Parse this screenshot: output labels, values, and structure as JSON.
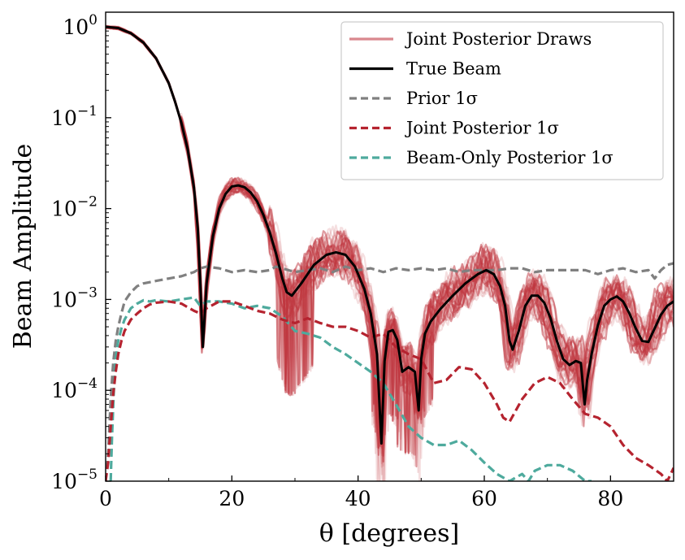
{
  "chart_data": {
    "type": "line",
    "title": "",
    "xlabel": "θ [degrees]",
    "ylabel": "Beam Amplitude",
    "xlim": [
      0,
      90
    ],
    "ylim": [
      1e-05,
      1.45
    ],
    "yscale": "log",
    "xticks": [
      0,
      20,
      40,
      60,
      80
    ],
    "xtick_labels": [
      "0",
      "20",
      "40",
      "60",
      "80"
    ],
    "yticks": [
      {
        "value": 1,
        "base": "10",
        "exp": "0"
      },
      {
        "value": 0.1,
        "base": "10",
        "exp": "−1"
      },
      {
        "value": 0.01,
        "base": "10",
        "exp": "−2"
      },
      {
        "value": 0.001,
        "base": "10",
        "exp": "−3"
      },
      {
        "value": 0.0001,
        "base": "10",
        "exp": "−4"
      },
      {
        "value": 1e-05,
        "base": "10",
        "exp": "−5"
      }
    ],
    "legend": {
      "position": "upper right",
      "entries": [
        {
          "label": "Joint Posterior Draws",
          "style": "solid",
          "color": "#d9888e"
        },
        {
          "label": "True Beam",
          "style": "solid",
          "color": "#000000"
        },
        {
          "label": "Prior 1σ",
          "style": "dashed",
          "color": "#808080"
        },
        {
          "label": "Joint Posterior 1σ",
          "style": "dashed",
          "color": "#b5232f"
        },
        {
          "label": "Beam-Only Posterior 1σ",
          "style": "dashed",
          "color": "#4eaa9d"
        }
      ]
    },
    "posterior_draws": {
      "name": "Joint Posterior Draws",
      "color": "#c0353f",
      "count": 40,
      "description_values": "spread of draws around the true beam"
    },
    "series": [
      {
        "name": "True Beam",
        "color": "#000000",
        "style": "solid",
        "x": [
          0,
          2,
          4,
          6,
          8,
          10,
          11,
          12,
          13,
          14,
          14.6,
          15.0,
          15.4,
          16,
          17,
          18,
          19,
          20,
          21,
          22,
          23,
          24,
          25,
          26,
          27,
          28,
          28.7,
          29.5,
          31,
          33,
          35,
          36.5,
          38,
          39.5,
          41,
          42,
          43,
          43.7,
          44.2,
          44.8,
          45.5,
          46.2,
          47,
          48,
          49,
          49.6,
          50,
          50.6,
          51.5,
          53,
          55,
          57,
          59,
          60.3,
          61.5,
          62.5,
          63.3,
          64,
          64.5,
          65.5,
          66.5,
          67.5,
          68.5,
          69.5,
          70.5,
          71.5,
          72.5,
          73.5,
          74.5,
          75.3,
          75.9,
          76.3,
          77,
          78,
          79,
          80,
          81,
          82,
          83,
          84,
          85,
          86,
          87,
          88,
          89,
          90
        ],
        "y": [
          1.0,
          0.97,
          0.85,
          0.67,
          0.45,
          0.24,
          0.15,
          0.088,
          0.045,
          0.017,
          0.006,
          0.0015,
          0.0003,
          0.0015,
          0.005,
          0.01,
          0.0145,
          0.0175,
          0.018,
          0.0172,
          0.015,
          0.012,
          0.0085,
          0.0055,
          0.0032,
          0.0017,
          0.0012,
          0.0011,
          0.0015,
          0.0024,
          0.0031,
          0.0033,
          0.0031,
          0.0023,
          0.0013,
          0.0007,
          0.00025,
          2.6e-05,
          0.00021,
          0.00044,
          0.00046,
          0.00036,
          0.00016,
          0.00018,
          0.00016,
          6e-05,
          0.00022,
          0.00042,
          0.00057,
          0.00078,
          0.0011,
          0.0015,
          0.0019,
          0.0021,
          0.0019,
          0.0014,
          0.00085,
          0.00035,
          0.00028,
          0.00046,
          0.00085,
          0.0011,
          0.0011,
          0.00092,
          0.00062,
          0.00035,
          0.00022,
          0.00019,
          0.00021,
          0.0002,
          7e-05,
          0.00013,
          0.00025,
          0.00052,
          0.00085,
          0.001,
          0.00108,
          0.00095,
          0.0007,
          0.00048,
          0.00035,
          0.00034,
          0.00048,
          0.00068,
          0.00085,
          0.00095
        ]
      },
      {
        "name": "Prior 1σ",
        "color": "#808080",
        "style": "dashed",
        "x": [
          0,
          0.4,
          0.8,
          1.2,
          1.6,
          2,
          2.5,
          3,
          4,
          5,
          6,
          7,
          8,
          10,
          12,
          14,
          15,
          16,
          18,
          20,
          22,
          24,
          26,
          27,
          28,
          30,
          32,
          34,
          36,
          38,
          40,
          42,
          44,
          46,
          48,
          50,
          52,
          54,
          56,
          58,
          60,
          62,
          64,
          66,
          68,
          70,
          72,
          74,
          76,
          78,
          80,
          82,
          84,
          86,
          87,
          88,
          89,
          90
        ],
        "y": [
          1e-05,
          2e-05,
          8e-05,
          0.0002,
          0.00035,
          0.0005,
          0.0007,
          0.00095,
          0.0012,
          0.0014,
          0.0015,
          0.00155,
          0.0016,
          0.0017,
          0.0018,
          0.002,
          0.0022,
          0.0023,
          0.0022,
          0.002,
          0.0021,
          0.002,
          0.0021,
          0.0023,
          0.0022,
          0.002,
          0.0021,
          0.0022,
          0.002,
          0.0023,
          0.0021,
          0.0022,
          0.002,
          0.0022,
          0.0021,
          0.0022,
          0.0021,
          0.0022,
          0.002,
          0.0021,
          0.0021,
          0.0021,
          0.0022,
          0.0022,
          0.002,
          0.0021,
          0.0021,
          0.0021,
          0.0021,
          0.0019,
          0.0021,
          0.0022,
          0.002,
          0.0021,
          0.0017,
          0.0021,
          0.0024,
          0.0025
        ]
      },
      {
        "name": "Joint Posterior 1σ",
        "color": "#b5232f",
        "style": "dashed",
        "x": [
          0,
          0.4,
          0.8,
          1.2,
          1.6,
          2,
          2.5,
          3,
          4,
          5,
          6,
          7,
          8,
          10,
          12,
          14,
          15,
          16,
          18,
          20,
          22,
          24,
          26,
          28,
          30,
          32,
          34,
          36,
          38,
          40,
          42,
          44,
          46,
          48,
          50,
          52,
          54,
          56,
          58,
          60,
          62,
          63,
          64,
          65,
          66,
          68,
          70,
          72,
          74,
          76,
          78,
          80,
          82,
          84,
          86,
          88,
          89,
          90
        ],
        "y": [
          1e-05,
          1.6e-05,
          4e-05,
          9e-05,
          0.00016,
          0.00025,
          0.00035,
          0.00045,
          0.0006,
          0.0007,
          0.0008,
          0.00088,
          0.00092,
          0.00095,
          0.0009,
          0.00075,
          0.0007,
          0.0008,
          0.00095,
          0.00095,
          0.00085,
          0.00075,
          0.0007,
          0.0006,
          0.00055,
          0.00062,
          0.00055,
          0.0005,
          0.0005,
          0.00045,
          0.00038,
          0.00042,
          0.0003,
          0.00025,
          0.00022,
          0.00012,
          0.00013,
          0.00018,
          0.00017,
          0.00012,
          7e-05,
          5e-05,
          4.5e-05,
          6e-05,
          8e-05,
          0.00012,
          0.00014,
          0.00012,
          8e-05,
          5.5e-05,
          5e-05,
          4e-05,
          2.5e-05,
          1.8e-05,
          1.5e-05,
          1.2e-05,
          1e-05,
          1.4e-05
        ]
      },
      {
        "name": "Beam-Only Posterior 1σ",
        "color": "#4eaa9d",
        "style": "dashed",
        "x": [
          0.8,
          1.0,
          1.3,
          1.6,
          2,
          2.5,
          3,
          4,
          5,
          6,
          7,
          8,
          10,
          12,
          14,
          15,
          16,
          18,
          20,
          22,
          24,
          26,
          28,
          30,
          32,
          34,
          36,
          38,
          40,
          42,
          44,
          46,
          48,
          50,
          52,
          54,
          56,
          58,
          60,
          62,
          64,
          66,
          67,
          68,
          70,
          72,
          74,
          76,
          77
        ],
        "y": [
          1e-05,
          3e-05,
          0.0001,
          0.00022,
          0.00035,
          0.00048,
          0.0006,
          0.0008,
          0.0009,
          0.00098,
          0.00095,
          0.00098,
          0.00095,
          0.001,
          0.00105,
          0.00085,
          0.00095,
          0.00095,
          0.0009,
          0.0008,
          0.00085,
          0.0008,
          0.00065,
          0.00045,
          0.00042,
          0.00038,
          0.0003,
          0.00025,
          0.0002,
          0.00016,
          0.00012,
          7e-05,
          4e-05,
          3e-05,
          2.5e-05,
          2.5e-05,
          2.8e-05,
          2.2e-05,
          1.6e-05,
          1.2e-05,
          1e-05,
          1.2e-05,
          1e-05,
          1.3e-05,
          1.5e-05,
          1.5e-05,
          1.3e-05,
          1e-05,
          1e-05
        ]
      }
    ]
  }
}
